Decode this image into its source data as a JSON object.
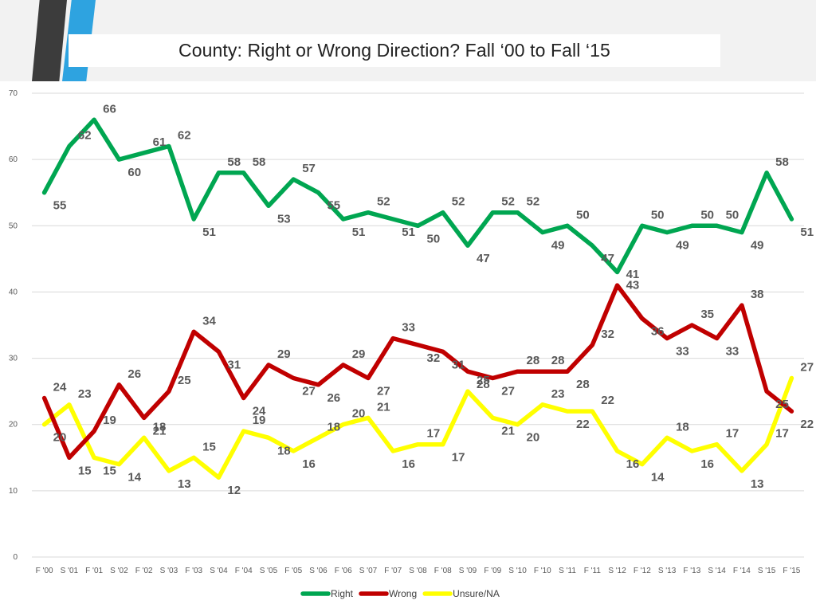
{
  "page": {
    "title": "County: Right or Wrong Direction? Fall ‘00 to  Fall ‘15"
  },
  "chart_data": {
    "type": "line",
    "title": "County: Right or Wrong Direction? Fall ‘00 to  Fall ‘15",
    "xlabel": "",
    "ylabel": "",
    "ylim": [
      0,
      70
    ],
    "yticks": [
      0,
      10,
      20,
      30,
      40,
      50,
      60,
      70
    ],
    "grid": true,
    "legend_position": "bottom",
    "categories": [
      "F '00",
      "S '01",
      "F '01",
      "S '02",
      "F '02",
      "S '03",
      "F '03",
      "S '04",
      "F '04",
      "S '05",
      "F '05",
      "S '06",
      "F '06",
      "S '07",
      "F '07",
      "S '08",
      "F '08",
      "S '09",
      "F '09",
      "S '10",
      "F '10",
      "S '11",
      "F '11",
      "S '12",
      "F '12",
      "S '13",
      "F '13",
      "S '14",
      "F '14",
      "S '15",
      "F '15"
    ],
    "series": [
      {
        "name": "Right",
        "color": "#00a651",
        "values": [
          55,
          62,
          66,
          60,
          61,
          62,
          51,
          58,
          58,
          53,
          57,
          55,
          51,
          52,
          51,
          50,
          52,
          47,
          52,
          52,
          49,
          50,
          47,
          43,
          50,
          49,
          50,
          50,
          49,
          58,
          51
        ]
      },
      {
        "name": "Wrong",
        "color": "#c00000",
        "values": [
          24,
          15,
          19,
          26,
          21,
          25,
          34,
          31,
          24,
          29,
          27,
          26,
          29,
          27,
          33,
          32,
          31,
          28,
          27,
          28,
          28,
          28,
          32,
          41,
          36,
          33,
          35,
          33,
          38,
          25,
          22
        ]
      },
      {
        "name": "Unsure/NA",
        "color": "#ffff00",
        "values": [
          20,
          23,
          15,
          14,
          18,
          13,
          15,
          12,
          19,
          18,
          16,
          18,
          20,
          21,
          16,
          17,
          17,
          25,
          21,
          20,
          23,
          22,
          22,
          16,
          14,
          18,
          16,
          17,
          13,
          17,
          27
        ]
      }
    ]
  }
}
